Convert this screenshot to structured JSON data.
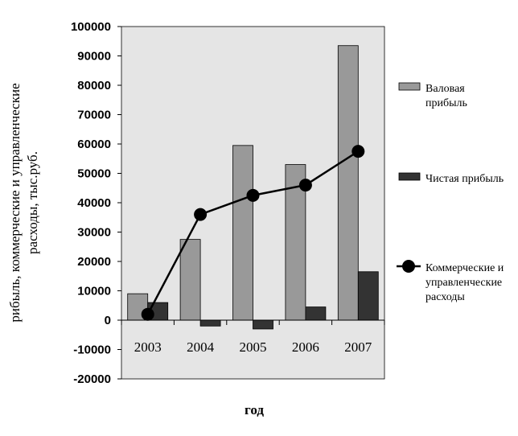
{
  "chart_data": {
    "type": "bar",
    "title": "",
    "xlabel": "год",
    "ylabel_lines": [
      "рибыль, коммерческие и управленческие",
      "расходы, тыс.руб."
    ],
    "categories": [
      "2003",
      "2004",
      "2005",
      "2006",
      "2007"
    ],
    "ylim": [
      -20000,
      100000
    ],
    "ytick_step": 10000,
    "grid": false,
    "legend_position": "right",
    "series": [
      {
        "name_lines": [
          "Валовая",
          "прибыль"
        ],
        "mark": "bar",
        "color": "#999999",
        "values": [
          9000,
          27500,
          59500,
          53000,
          93500
        ]
      },
      {
        "name_lines": [
          "Чистая прибыль"
        ],
        "mark": "bar",
        "color": "#333333",
        "values": [
          6000,
          -2000,
          -3000,
          4500,
          16500
        ]
      },
      {
        "name_lines": [
          "Коммерческие и",
          "управленческие",
          "расходы"
        ],
        "mark": "line",
        "color": "#000000",
        "values": [
          2000,
          36000,
          42500,
          46000,
          57500
        ]
      }
    ],
    "plot_background": "#e5e5e5"
  }
}
